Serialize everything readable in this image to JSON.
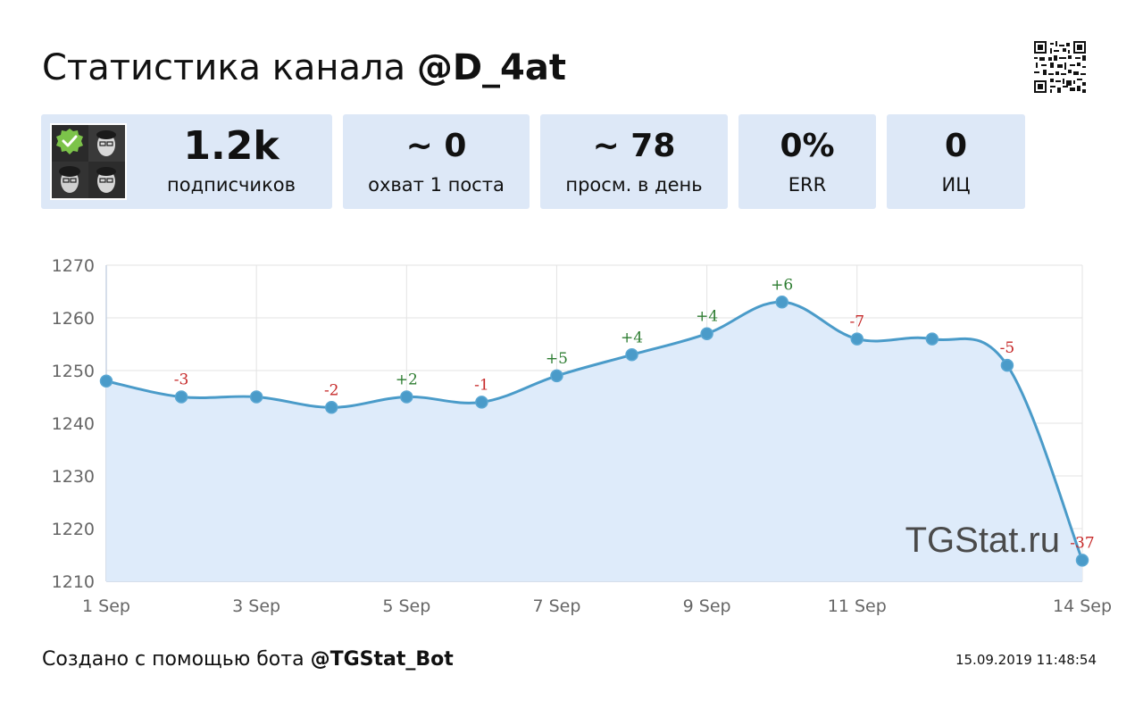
{
  "header": {
    "title_prefix": "Статистика канала ",
    "channel": "@D_4at"
  },
  "stats": [
    {
      "value": "1.2k",
      "label": "подписчиков"
    },
    {
      "value": "~ 0",
      "label": "охват 1 поста"
    },
    {
      "value": "~ 78",
      "label": "просм. в день"
    },
    {
      "value": "0%",
      "label": "ERR"
    },
    {
      "value": "0",
      "label": "ИЦ"
    }
  ],
  "chart_data": {
    "type": "area",
    "x": [
      "1 Sep",
      "2 Sep",
      "3 Sep",
      "4 Sep",
      "5 Sep",
      "6 Sep",
      "7 Sep",
      "8 Sep",
      "9 Sep",
      "10 Sep",
      "11 Sep",
      "12 Sep",
      "13 Sep",
      "14 Sep"
    ],
    "x_tick_labels": [
      "1 Sep",
      "3 Sep",
      "5 Sep",
      "7 Sep",
      "9 Sep",
      "11 Sep",
      "14 Sep"
    ],
    "values": [
      1248,
      1245,
      1245,
      1243,
      1245,
      1244,
      1249,
      1253,
      1257,
      1263,
      1256,
      1256,
      1251,
      1214
    ],
    "data_labels": [
      "",
      "-3",
      "",
      "-2",
      "+2",
      "-1",
      "+5",
      "+4",
      "+4",
      "+6",
      "-7",
      "",
      "-5",
      "-37"
    ],
    "y_ticks": [
      1210,
      1220,
      1230,
      1240,
      1250,
      1260,
      1270
    ],
    "ylim": [
      1210,
      1270
    ],
    "grid": true,
    "colors": {
      "line": "#4a9bc9",
      "fill": "#deebfa",
      "positive": "#2e7d32",
      "negative": "#c62828"
    }
  },
  "watermark": "TGStat.ru",
  "footer": {
    "prefix": "Создано с помощью бота ",
    "bot": "@TGStat_Bot",
    "timestamp": "15.09.2019 11:48:54"
  }
}
